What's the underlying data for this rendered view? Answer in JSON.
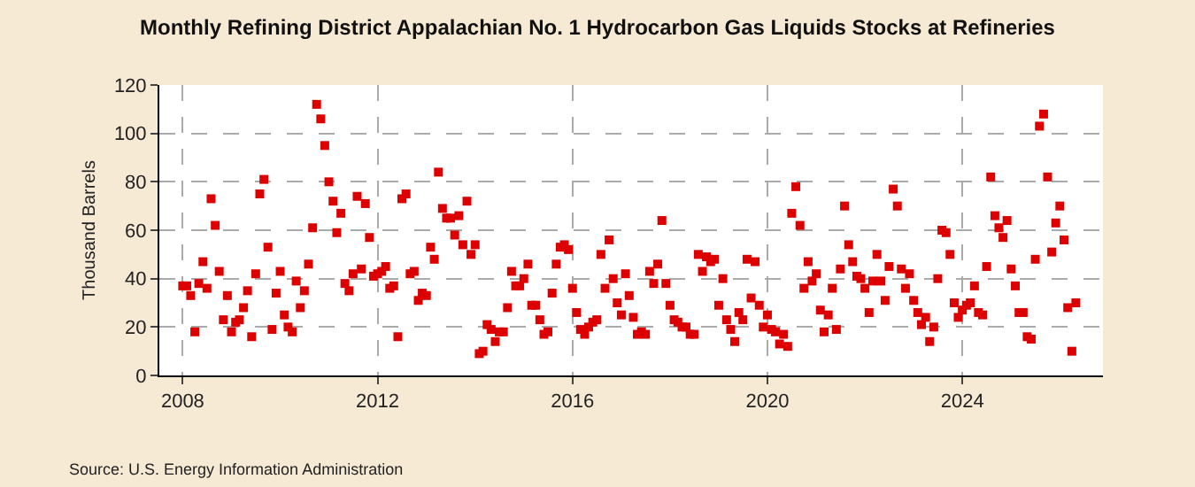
{
  "chart_data": {
    "type": "scatter",
    "title": "Monthly Refining District Appalachian No. 1 Hydrocarbon Gas Liquids Stocks at Refineries",
    "ylabel": "Thousand Barrels",
    "annotations": [
      "Source: U.S. Energy Information Administration"
    ],
    "x": [
      "2008-01",
      "2008-02",
      "2008-03",
      "2008-04",
      "2008-05",
      "2008-06",
      "2008-07",
      "2008-08",
      "2008-09",
      "2008-10",
      "2008-11",
      "2008-12",
      "2009-01",
      "2009-02",
      "2009-03",
      "2009-04",
      "2009-05",
      "2009-06",
      "2009-07",
      "2009-08",
      "2009-09",
      "2009-10",
      "2009-11",
      "2009-12",
      "2010-01",
      "2010-02",
      "2010-03",
      "2010-04",
      "2010-05",
      "2010-06",
      "2010-07",
      "2010-08",
      "2010-09",
      "2010-10",
      "2010-11",
      "2010-12",
      "2011-01",
      "2011-02",
      "2011-03",
      "2011-04",
      "2011-05",
      "2011-06",
      "2011-07",
      "2011-08",
      "2011-09",
      "2011-10",
      "2011-11",
      "2011-12",
      "2012-01",
      "2012-02",
      "2012-03",
      "2012-04",
      "2012-05",
      "2012-06",
      "2012-07",
      "2012-08",
      "2012-09",
      "2012-10",
      "2012-11",
      "2012-12",
      "2013-01",
      "2013-02",
      "2013-03",
      "2013-04",
      "2013-05",
      "2013-06",
      "2013-07",
      "2013-08",
      "2013-09",
      "2013-10",
      "2013-11",
      "2013-12",
      "2014-01",
      "2014-02",
      "2014-03",
      "2014-04",
      "2014-05",
      "2014-06",
      "2014-07",
      "2014-08",
      "2014-09",
      "2014-10",
      "2014-11",
      "2014-12",
      "2015-01",
      "2015-02",
      "2015-03",
      "2015-04",
      "2015-05",
      "2015-06",
      "2015-07",
      "2015-08",
      "2015-09",
      "2015-10",
      "2015-11",
      "2015-12",
      "2016-01",
      "2016-02",
      "2016-03",
      "2016-04",
      "2016-05",
      "2016-06",
      "2016-07",
      "2016-08",
      "2016-09",
      "2016-10",
      "2016-11",
      "2016-12",
      "2017-01",
      "2017-02",
      "2017-03",
      "2017-04",
      "2017-05",
      "2017-06",
      "2017-07",
      "2017-08",
      "2017-09",
      "2017-10",
      "2017-11",
      "2017-12",
      "2018-01",
      "2018-02",
      "2018-03",
      "2018-04",
      "2018-05",
      "2018-06",
      "2018-07",
      "2018-08",
      "2018-09",
      "2018-10",
      "2018-11",
      "2018-12",
      "2019-01",
      "2019-02",
      "2019-03",
      "2019-04",
      "2019-05",
      "2019-06",
      "2019-07",
      "2019-08",
      "2019-09",
      "2019-10",
      "2019-11",
      "2019-12",
      "2020-01",
      "2020-02",
      "2020-03",
      "2020-04",
      "2020-05",
      "2020-06",
      "2020-07",
      "2020-08",
      "2020-09",
      "2020-10",
      "2020-11",
      "2020-12",
      "2021-01",
      "2021-02",
      "2021-03",
      "2021-04",
      "2021-05",
      "2021-06",
      "2021-07",
      "2021-08",
      "2021-09",
      "2021-10",
      "2021-11",
      "2021-12",
      "2022-01",
      "2022-02",
      "2022-03",
      "2022-04",
      "2022-05",
      "2022-06",
      "2022-07",
      "2022-08",
      "2022-09",
      "2022-10",
      "2022-11",
      "2022-12",
      "2023-01",
      "2023-02",
      "2023-03",
      "2023-04",
      "2023-05",
      "2023-06",
      "2023-07",
      "2023-08",
      "2023-09",
      "2023-10",
      "2023-11",
      "2023-12",
      "2024-01",
      "2024-02",
      "2024-03",
      "2024-04",
      "2024-05",
      "2024-06",
      "2024-07",
      "2024-08",
      "2024-09",
      "2024-10",
      "2024-11",
      "2024-12",
      "2025-01",
      "2025-02",
      "2025-03",
      "2025-04",
      "2025-05",
      "2025-06",
      "2025-07",
      "2025-08",
      "2025-09",
      "2025-10",
      "2025-11",
      "2025-12",
      "2026-01",
      "2026-02",
      "2026-03",
      "2026-04",
      "2026-05"
    ],
    "values": [
      37,
      37,
      33,
      18,
      38,
      47,
      36,
      73,
      62,
      43,
      23,
      33,
      18,
      22,
      23,
      28,
      35,
      16,
      42,
      75,
      81,
      53,
      19,
      34,
      43,
      25,
      20,
      18,
      39,
      28,
      35,
      46,
      61,
      112,
      106,
      95,
      80,
      72,
      59,
      67,
      38,
      35,
      42,
      74,
      44,
      71,
      57,
      41,
      42,
      43,
      45,
      36,
      37,
      16,
      73,
      75,
      42,
      43,
      31,
      34,
      33,
      53,
      48,
      84,
      69,
      65,
      65,
      58,
      66,
      54,
      72,
      50,
      54,
      9,
      10,
      21,
      19,
      14,
      18,
      18,
      28,
      43,
      37,
      37,
      40,
      46,
      29,
      29,
      23,
      17,
      18,
      34,
      46,
      53,
      54,
      52,
      36,
      26,
      19,
      17,
      20,
      22,
      23,
      50,
      36,
      56,
      40,
      30,
      25,
      42,
      33,
      24,
      17,
      18,
      17,
      43,
      38,
      46,
      64,
      38,
      29,
      23,
      22,
      20,
      20,
      17,
      17,
      50,
      43,
      49,
      47,
      48,
      29,
      40,
      23,
      19,
      14,
      26,
      23,
      48,
      32,
      47,
      29,
      20,
      25,
      19,
      18,
      13,
      17,
      12,
      67,
      78,
      62,
      36,
      47,
      39,
      42,
      27,
      18,
      25,
      36,
      19,
      44,
      70,
      54,
      47,
      41,
      40,
      36,
      26,
      39,
      50,
      39,
      31,
      45,
      77,
      70,
      44,
      36,
      42,
      31,
      26,
      21,
      24,
      14,
      20,
      40,
      60,
      59,
      50,
      30,
      24,
      27,
      29,
      30,
      37,
      26,
      25,
      45,
      82,
      66,
      61,
      57,
      64,
      44,
      37,
      26,
      26,
      16,
      15,
      48,
      103,
      108,
      82,
      51,
      63,
      70,
      56,
      28,
      10,
      30
    ],
    "color": "#dd0000",
    "marker": "square",
    "xlim": [
      "2007-07-10",
      "2026-11-20"
    ],
    "xticks": [
      {
        "value": "2008-01-01",
        "label": "2008"
      },
      {
        "value": "2012-01-01",
        "label": "2012"
      },
      {
        "value": "2016-01-01",
        "label": "2016"
      },
      {
        "value": "2020-01-01",
        "label": "2020"
      },
      {
        "value": "2024-01-01",
        "label": "2024"
      }
    ],
    "ylim": [
      0,
      120
    ],
    "yticks": [
      0,
      20,
      40,
      60,
      80,
      100,
      120
    ],
    "grid": true
  }
}
